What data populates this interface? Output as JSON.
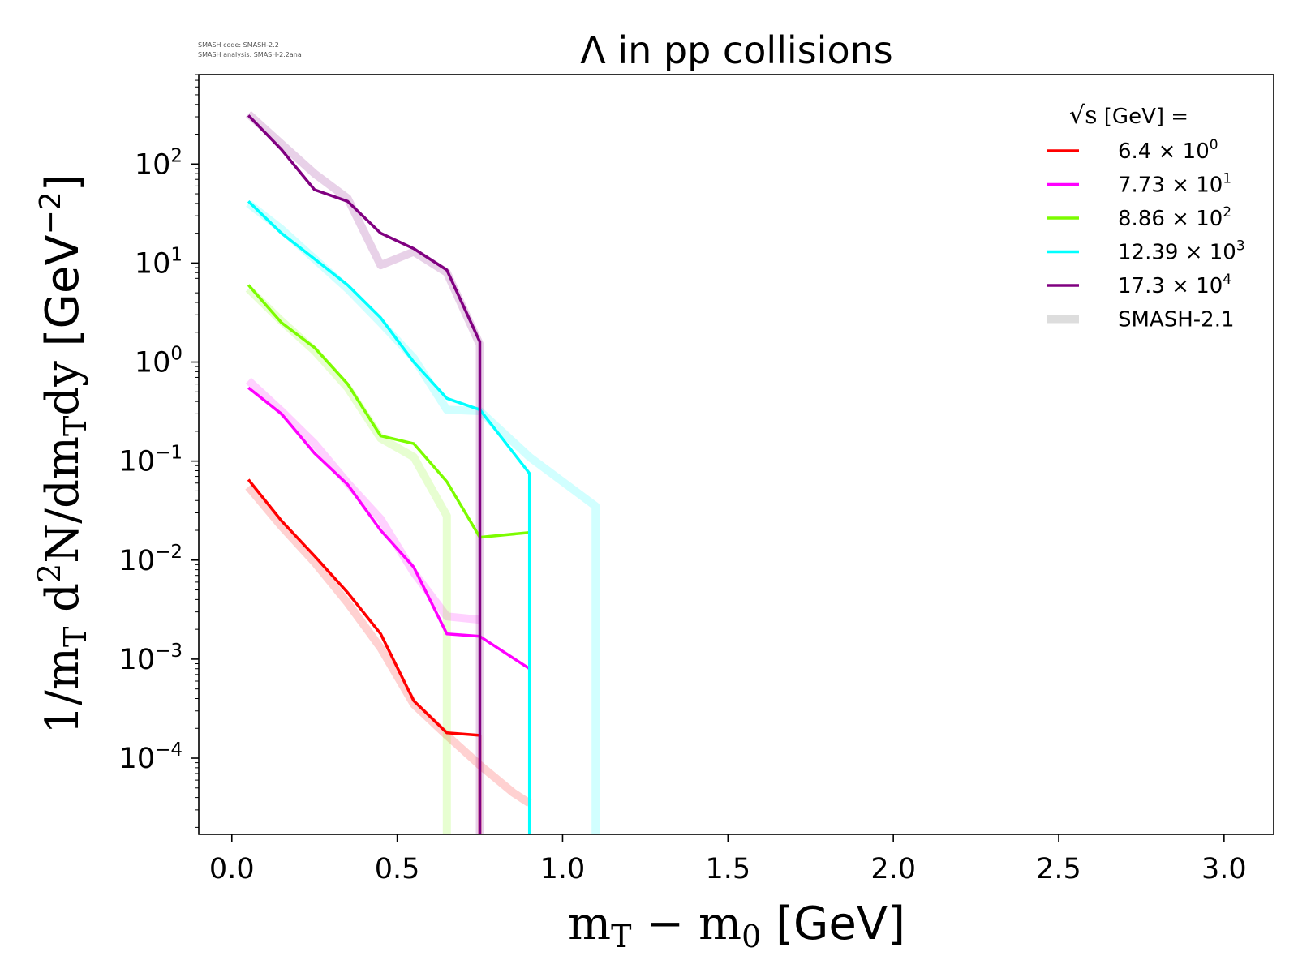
{
  "watermark": {
    "line1": "SMASH code:      SMASH-2.2",
    "line2": "SMASH analysis: SMASH-2.2ana"
  },
  "chart_data": {
    "type": "line",
    "title": "Λ in pp collisions",
    "xlabel": {
      "main": "m",
      "sub1": "T",
      "mid": " − m",
      "sub2": "0",
      "unit": " [GeV]"
    },
    "ylabel": {
      "pre": "1/m",
      "sub1": "T",
      "mid": " d",
      "sup": "2",
      "mid2": "N/dm",
      "sub2": "T",
      "mid3": "dy",
      "unit": " [GeV",
      "unit_sup": "−2",
      "unit_end": "]"
    },
    "xlim": [
      -0.1,
      3.15
    ],
    "ylim": [
      1.7e-05,
      800
    ],
    "yscale": "log",
    "grid": false,
    "xticks": [
      0.0,
      0.5,
      1.0,
      1.5,
      2.0,
      2.5,
      3.0
    ],
    "xtick_labels": [
      "0.0",
      "0.5",
      "1.0",
      "1.5",
      "2.0",
      "2.5",
      "3.0"
    ],
    "yticks": [
      {
        "value": 0.0001,
        "base": "10",
        "exp": "−4"
      },
      {
        "value": 0.001,
        "base": "10",
        "exp": "−3"
      },
      {
        "value": 0.01,
        "base": "10",
        "exp": "−2"
      },
      {
        "value": 0.1,
        "base": "10",
        "exp": "−1"
      },
      {
        "value": 1,
        "base": "10",
        "exp": "0"
      },
      {
        "value": 10,
        "base": "10",
        "exp": "1"
      },
      {
        "value": 100,
        "base": "10",
        "exp": "2"
      }
    ],
    "legend": {
      "position": "top-right",
      "title_root": "√s",
      "title_rest": " [GeV] =",
      "entries": [
        {
          "mant": "6.4",
          "exp": "0",
          "color": "#ff0000"
        },
        {
          "mant": "7.73",
          "exp": "1",
          "color": "#ff00ff"
        },
        {
          "mant": "8.86",
          "exp": "2",
          "color": "#7cfc00"
        },
        {
          "mant": "12.39",
          "exp": "3",
          "color": "#00ffff"
        },
        {
          "mant": "17.3",
          "exp": "4",
          "color": "#800080"
        },
        {
          "label": "SMASH-2.1",
          "color": "#dddddd"
        }
      ]
    },
    "series": [
      {
        "color": "#ff0000",
        "x": [
          0.05,
          0.15,
          0.25,
          0.35,
          0.45,
          0.55,
          0.65,
          0.75,
          0.75
        ],
        "y": [
          0.065,
          0.025,
          0.011,
          0.0047,
          0.0018,
          0.00038,
          0.00018,
          0.00017,
          1e-06
        ],
        "ref_x": [
          0.05,
          0.15,
          0.25,
          0.35,
          0.45,
          0.55,
          0.65,
          0.75,
          0.85,
          0.9
        ],
        "ref_y": [
          0.055,
          0.022,
          0.0095,
          0.0037,
          0.0013,
          0.00035,
          0.00017,
          8.5e-05,
          4.5e-05,
          3.5e-05
        ]
      },
      {
        "color": "#ff00ff",
        "x": [
          0.05,
          0.15,
          0.25,
          0.35,
          0.45,
          0.55,
          0.65,
          0.75,
          0.9
        ],
        "y": [
          0.55,
          0.3,
          0.12,
          0.058,
          0.02,
          0.0085,
          0.0018,
          0.0017,
          0.0008
        ],
        "ref_x": [
          0.05,
          0.15,
          0.25,
          0.35,
          0.45,
          0.55,
          0.65,
          0.75
        ],
        "ref_y": [
          0.65,
          0.32,
          0.15,
          0.06,
          0.026,
          0.0075,
          0.0027,
          0.0025
        ]
      },
      {
        "color": "#7cfc00",
        "x": [
          0.05,
          0.15,
          0.25,
          0.35,
          0.45,
          0.55,
          0.65,
          0.75,
          0.9
        ],
        "y": [
          6.0,
          2.5,
          1.4,
          0.6,
          0.18,
          0.15,
          0.062,
          0.017,
          0.019
        ],
        "ref_x": [
          0.05,
          0.15,
          0.25,
          0.35,
          0.45,
          0.55,
          0.65,
          0.65
        ],
        "ref_y": [
          5.5,
          2.6,
          1.3,
          0.55,
          0.17,
          0.11,
          0.028,
          1e-06
        ]
      },
      {
        "color": "#00ffff",
        "x": [
          0.05,
          0.15,
          0.25,
          0.35,
          0.45,
          0.55,
          0.65,
          0.75,
          0.9,
          0.9
        ],
        "y": [
          42,
          20,
          11,
          6,
          2.8,
          1.0,
          0.43,
          0.33,
          0.075,
          1e-06
        ],
        "ref_x": [
          0.05,
          0.15,
          0.25,
          0.35,
          0.45,
          0.55,
          0.65,
          0.75,
          0.9,
          1.1,
          1.1
        ],
        "ref_y": [
          40,
          22,
          11,
          5.5,
          2.5,
          1.1,
          0.33,
          0.32,
          0.11,
          0.035,
          1e-06
        ]
      },
      {
        "color": "#800080",
        "x": [
          0.05,
          0.15,
          0.25,
          0.35,
          0.45,
          0.55,
          0.65,
          0.75,
          0.75
        ],
        "y": [
          310,
          140,
          55,
          42,
          20,
          14,
          8.5,
          1.6,
          1e-06
        ],
        "ref_x": [
          0.05,
          0.15,
          0.25,
          0.35,
          0.45,
          0.55,
          0.65,
          0.75,
          0.75
        ],
        "ref_y": [
          320,
          160,
          80,
          45,
          9.5,
          13,
          8.0,
          1.5,
          1e-06
        ]
      }
    ]
  }
}
